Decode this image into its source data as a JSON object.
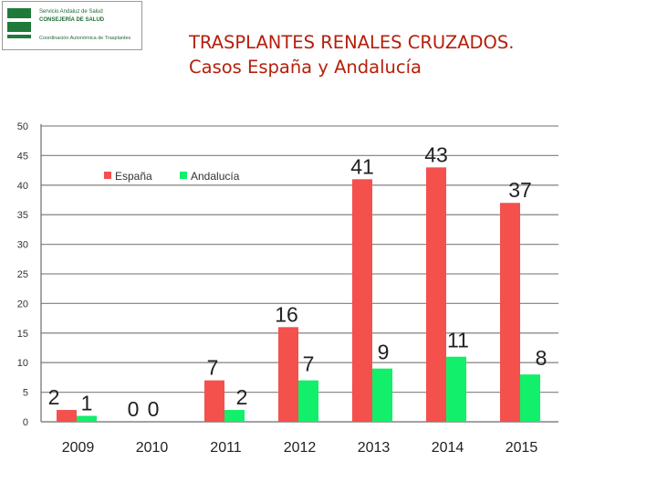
{
  "logo": {
    "line1": "Servicio Andaluz de Salud",
    "line2": "CONSEJERÍA DE SALUD",
    "line3": "Coordinación Autonómica de Trasplantes"
  },
  "title": {
    "line1": "TRASPLANTES RENALES CRUZADOS.",
    "line2": "Casos España y Andalucía"
  },
  "chart_data": {
    "type": "bar",
    "categories": [
      "2009",
      "2010",
      "2011",
      "2012",
      "2013",
      "2014",
      "2015"
    ],
    "series": [
      {
        "name": "España",
        "values": [
          2,
          0,
          7,
          16,
          41,
          43,
          37
        ],
        "color": "#f4504c"
      },
      {
        "name": "Andalucía",
        "values": [
          1,
          0,
          2,
          7,
          9,
          11,
          8
        ],
        "color": "#12ef6a"
      }
    ],
    "ylim": [
      0,
      50
    ],
    "yticks": [
      0,
      5,
      10,
      15,
      20,
      25,
      30,
      35,
      40,
      45,
      50
    ],
    "grid": true,
    "legend_position": "top-left",
    "gridline_color": "#8c8c8c",
    "axis_color": "#6b6b6b"
  }
}
